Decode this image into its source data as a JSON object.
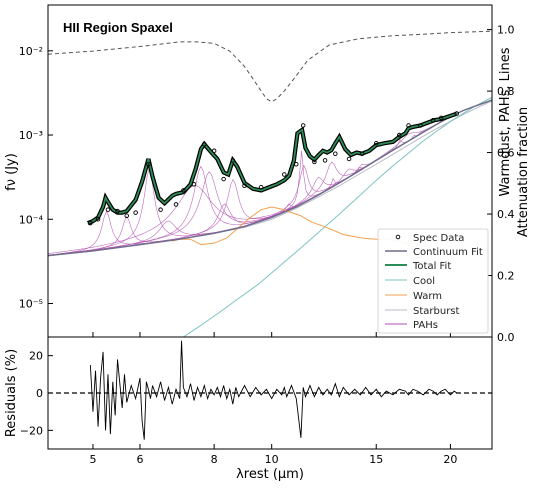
{
  "chart_data": [
    {
      "type": "line",
      "title": "HII Region Spaxel",
      "xlabel": "λrest (μm)",
      "ylabel": "fν (Jy)",
      "y2label": "Attenuation fraction",
      "y2label_small": "Warmdust, PAHs, Lines",
      "xscale": "log",
      "yscale": "log",
      "xlim": [
        4.2,
        23.5
      ],
      "ylim": [
        4e-06,
        0.035
      ],
      "y2lim": [
        0.0,
        1.08
      ],
      "grid": false,
      "legend_position": "lower-right",
      "x_ticks": [
        {
          "value": 5,
          "label": "5"
        },
        {
          "value": 6,
          "label": "6"
        },
        {
          "value": 8,
          "label": "8"
        },
        {
          "value": 10,
          "label": "10"
        },
        {
          "value": 15,
          "label": "15"
        },
        {
          "value": 20,
          "label": "20"
        }
      ],
      "y_ticks": [
        {
          "value": 1e-05,
          "label": "10⁻⁵"
        },
        {
          "value": 0.0001,
          "label": "10⁻⁴"
        },
        {
          "value": 0.001,
          "label": "10⁻³"
        },
        {
          "value": 0.01,
          "label": "10⁻²"
        }
      ],
      "y2_ticks": [
        {
          "value": 0.0,
          "label": "0.0"
        },
        {
          "value": 0.2,
          "label": "0.2"
        },
        {
          "value": 0.4,
          "label": "0.4"
        },
        {
          "value": 0.6,
          "label": "0.6"
        },
        {
          "value": 0.8,
          "label": "0.8"
        },
        {
          "value": 1.0,
          "label": "1.0"
        }
      ],
      "series": [
        {
          "name": "Spec Data",
          "marker": "open-circle",
          "color": "#000000",
          "x": [
            4.95,
            5.1,
            5.3,
            5.5,
            5.7,
            5.9,
            6.2,
            6.5,
            6.9,
            7.1,
            7.4,
            7.7,
            8.0,
            8.3,
            8.6,
            9.0,
            9.6,
            10.5,
            11.0,
            11.3,
            11.8,
            12.3,
            12.8,
            13.5,
            14.2,
            15.0,
            16.4,
            17.0,
            17.8,
            18.7,
            19.3,
            20.5
          ],
          "y": [
            9e-05,
            0.0001,
            0.00013,
            0.000125,
            0.00011,
            0.00012,
            0.00045,
            0.00013,
            0.00015,
            0.00022,
            0.00026,
            0.00078,
            0.00065,
            0.0003,
            0.0005,
            0.00025,
            0.00024,
            0.00034,
            0.00045,
            0.0013,
            0.00048,
            0.0005,
            0.0006,
            0.00052,
            0.0006,
            0.0008,
            0.001,
            0.0013,
            0.0013,
            0.0015,
            0.0016,
            0.0018
          ]
        },
        {
          "name": "Continuum Fit",
          "color": "#6e6e8a",
          "x": [
            4.2,
            5,
            6,
            7,
            8,
            9,
            10,
            11,
            12,
            13,
            14,
            15,
            16,
            17,
            18,
            19,
            20,
            21,
            22,
            23.5
          ],
          "y": [
            3.7e-05,
            4.2e-05,
            5e-05,
            5.8e-05,
            6.8e-05,
            8.2e-05,
            0.000105,
            0.00014,
            0.000195,
            0.00027,
            0.00037,
            0.0005,
            0.00066,
            0.00085,
            0.00108,
            0.00135,
            0.00165,
            0.00195,
            0.0022,
            0.0026
          ]
        },
        {
          "name": "Total Fit",
          "color": "#2e8b57",
          "x": [
            4.9,
            5.0,
            5.1,
            5.2,
            5.25,
            5.3,
            5.4,
            5.5,
            5.6,
            5.7,
            5.9,
            6.05,
            6.2,
            6.3,
            6.45,
            6.6,
            6.8,
            6.9,
            7.1,
            7.3,
            7.45,
            7.6,
            7.7,
            7.8,
            7.95,
            8.1,
            8.3,
            8.45,
            8.6,
            8.75,
            9.0,
            9.3,
            9.6,
            9.9,
            10.2,
            10.5,
            10.7,
            10.9,
            11.05,
            11.25,
            11.4,
            11.6,
            11.8,
            12.0,
            12.2,
            12.4,
            12.6,
            12.8,
            13.0,
            13.3,
            13.6,
            13.9,
            14.2,
            14.6,
            15.0,
            15.5,
            16.0,
            16.4,
            16.8,
            17.0,
            17.3,
            17.8,
            18.3,
            18.8,
            19.3,
            19.8,
            20.3,
            20.5
          ],
          "y": [
            9e-05,
            9.5e-05,
            0.000105,
            0.00014,
            0.00018,
            0.00016,
            0.00013,
            0.00012,
            0.00012,
            0.000125,
            0.00017,
            0.00028,
            0.00052,
            0.00032,
            0.00018,
            0.000155,
            0.00019,
            0.0002,
            0.00021,
            0.00026,
            0.0004,
            0.00068,
            0.00078,
            0.0007,
            0.0006,
            0.00052,
            0.00036,
            0.00034,
            0.0005,
            0.00042,
            0.00027,
            0.00023,
            0.00022,
            0.00024,
            0.00026,
            0.00029,
            0.00033,
            0.0005,
            0.00105,
            0.00115,
            0.0007,
            0.00056,
            0.00051,
            0.00058,
            0.00065,
            0.00062,
            0.00066,
            0.0008,
            0.00095,
            0.00068,
            0.00058,
            0.00062,
            0.0006,
            0.00065,
            0.00076,
            0.0008,
            0.00083,
            0.00095,
            0.00105,
            0.0012,
            0.00125,
            0.0013,
            0.0014,
            0.0015,
            0.00155,
            0.00165,
            0.00175,
            0.0018
          ]
        },
        {
          "name": "Cool",
          "color": "#7ec2c2",
          "x": [
            7.1,
            7.6,
            8.2,
            8.8,
            9.5,
            10.2,
            11.0,
            12.0,
            13.0,
            14.0,
            15.0,
            16.0,
            17.0,
            18.0,
            19.0,
            20.0,
            21.0,
            22.0,
            23.5
          ],
          "y": [
            4e-06,
            5.5e-06,
            8e-06,
            1.15e-05,
            1.7e-05,
            2.6e-05,
            4.1e-05,
            7e-05,
            0.000115,
            0.000185,
            0.00029,
            0.00043,
            0.00061,
            0.00085,
            0.00112,
            0.00145,
            0.0018,
            0.0022,
            0.0028
          ]
        },
        {
          "name": "Warm",
          "color": "#f0a050",
          "x": [
            6.8,
            7.0,
            7.3,
            7.6,
            8.0,
            8.4,
            8.8,
            9.2,
            9.6,
            10.0,
            10.4,
            10.8,
            11.2,
            11.7,
            12.2,
            12.7,
            13.2,
            13.8,
            14.4,
            15.0,
            15.6,
            16.2,
            16.8,
            17.5,
            18.2
          ],
          "y": [
            5.5e-05,
            5.8e-05,
            5.8e-05,
            5e-05,
            5.2e-05,
            6e-05,
            8e-05,
            0.000105,
            0.00013,
            0.00014,
            0.000132,
            0.00012,
            0.00011,
            9.2e-05,
            8.3e-05,
            7.4e-05,
            6.6e-05,
            6.2e-05,
            5.9e-05,
            5.8e-05,
            5.8e-05,
            5.6e-05,
            5.2e-05,
            5e-05,
            4.7e-05
          ]
        },
        {
          "name": "Starburst",
          "color": "#b8b8c8",
          "x": [
            4.2,
            5,
            6,
            7,
            8,
            9,
            10,
            11,
            12,
            13,
            14,
            15,
            16,
            17,
            18,
            19,
            20,
            21,
            22,
            23.5
          ],
          "y": [
            3.7e-05,
            4.2e-05,
            5e-05,
            5.8e-05,
            6.8e-05,
            8e-05,
            0.0001,
            0.000135,
            0.000185,
            0.00025,
            0.00034,
            0.00045,
            0.00059,
            0.00076,
            0.00097,
            0.0012,
            0.00145,
            0.00175,
            0.00205,
            0.00255
          ]
        },
        {
          "name": "PAHs",
          "color": "#b04fb0",
          "profile": "drude",
          "features": [
            {
              "x0": 5.27,
              "peak": 8e-05,
              "fwhm": 0.18
            },
            {
              "x0": 5.7,
              "peak": 6e-05,
              "fwhm": 0.2
            },
            {
              "x0": 6.22,
              "peak": 0.00035,
              "fwhm": 0.19
            },
            {
              "x0": 6.69,
              "peak": 4e-05,
              "fwhm": 0.47
            },
            {
              "x0": 7.42,
              "peak": 0.00019,
              "fwhm": 0.94
            },
            {
              "x0": 7.6,
              "peak": 0.00036,
              "fwhm": 0.33
            },
            {
              "x0": 7.85,
              "peak": 0.0003,
              "fwhm": 0.42
            },
            {
              "x0": 8.33,
              "peak": 8e-05,
              "fwhm": 0.42
            },
            {
              "x0": 8.61,
              "peak": 0.00022,
              "fwhm": 0.34
            },
            {
              "x0": 10.68,
              "peak": 2.5e-05,
              "fwhm": 0.21
            },
            {
              "x0": 11.23,
              "peak": 0.0005,
              "fwhm": 0.14
            },
            {
              "x0": 11.33,
              "peak": 0.00028,
              "fwhm": 0.36
            },
            {
              "x0": 11.99,
              "peak": 0.00012,
              "fwhm": 0.54
            },
            {
              "x0": 12.62,
              "peak": 0.00024,
              "fwhm": 0.53
            },
            {
              "x0": 12.69,
              "peak": 6e-05,
              "fwhm": 0.16
            },
            {
              "x0": 13.48,
              "peak": 8e-05,
              "fwhm": 0.54
            },
            {
              "x0": 14.04,
              "peak": 4e-05,
              "fwhm": 0.22
            },
            {
              "x0": 14.19,
              "peak": 6e-05,
              "fwhm": 0.36
            },
            {
              "x0": 15.9,
              "peak": 3e-05,
              "fwhm": 0.32
            },
            {
              "x0": 16.45,
              "peak": 0.00014,
              "fwhm": 0.23
            },
            {
              "x0": 17.04,
              "peak": 0.00018,
              "fwhm": 1.1
            },
            {
              "x0": 17.37,
              "peak": 6e-05,
              "fwhm": 0.21
            },
            {
              "x0": 17.87,
              "peak": 5e-05,
              "fwhm": 0.29
            }
          ]
        },
        {
          "name": "Attenuation",
          "axis": "y2",
          "style": "dashed",
          "color": "#555555",
          "x": [
            4.2,
            5,
            6,
            7,
            7.5,
            8,
            8.5,
            9,
            9.3,
            9.6,
            9.8,
            10.0,
            10.2,
            10.5,
            10.9,
            11.5,
            12.5,
            14,
            16,
            18,
            20,
            23.5
          ],
          "y": [
            0.92,
            0.93,
            0.945,
            0.96,
            0.96,
            0.955,
            0.93,
            0.88,
            0.84,
            0.8,
            0.775,
            0.765,
            0.775,
            0.8,
            0.84,
            0.9,
            0.95,
            0.97,
            0.98,
            0.985,
            0.99,
            0.995
          ]
        }
      ]
    },
    {
      "type": "line",
      "xlabel": "λrest (μm)",
      "ylabel": "Residuals (%)",
      "xscale": "log",
      "xlim": [
        4.2,
        23.5
      ],
      "ylim": [
        -30,
        30
      ],
      "y_ticks": [
        {
          "value": -20,
          "label": "−20"
        },
        {
          "value": 0,
          "label": "0"
        },
        {
          "value": 20,
          "label": "20"
        }
      ],
      "zero_line": "dashed",
      "series": [
        {
          "name": "Residuals",
          "color": "#000000",
          "x": [
            4.95,
            5.0,
            5.05,
            5.1,
            5.15,
            5.2,
            5.25,
            5.3,
            5.35,
            5.4,
            5.45,
            5.5,
            5.6,
            5.65,
            5.7,
            5.8,
            5.9,
            6.0,
            6.05,
            6.1,
            6.15,
            6.2,
            6.25,
            6.3,
            6.4,
            6.5,
            6.6,
            6.7,
            6.8,
            6.9,
            7.0,
            7.05,
            7.1,
            7.2,
            7.3,
            7.4,
            7.5,
            7.6,
            7.7,
            7.8,
            7.9,
            8.0,
            8.1,
            8.2,
            8.3,
            8.4,
            8.5,
            8.6,
            8.7,
            8.8,
            9.0,
            9.2,
            9.4,
            9.6,
            9.8,
            10.0,
            10.2,
            10.4,
            10.5,
            10.6,
            10.8,
            11.0,
            11.2,
            11.3,
            11.4,
            11.6,
            11.8,
            12.0,
            12.2,
            12.4,
            12.6,
            12.8,
            13.0,
            13.2,
            13.5,
            13.8,
            14.1,
            14.4,
            14.7,
            15.0,
            15.3,
            15.6,
            16.0,
            16.4,
            16.8,
            17.0,
            17.3,
            17.6,
            18.0,
            18.4,
            18.7,
            19.0,
            19.3,
            19.6,
            20.0,
            20.3,
            20.5
          ],
          "y": [
            15,
            -10,
            12,
            -18,
            8,
            22,
            -20,
            10,
            -22,
            6,
            -12,
            18,
            -8,
            10,
            -5,
            4,
            -3,
            8,
            -15,
            -25,
            6,
            2,
            -3,
            4,
            -2,
            6,
            -4,
            3,
            -6,
            2,
            -3,
            28,
            3,
            -2,
            5,
            -4,
            3,
            -2,
            4,
            -3,
            2,
            -1,
            3,
            -2,
            4,
            -3,
            2,
            -6,
            3,
            -2,
            4,
            -2,
            3,
            -1,
            2,
            -3,
            2,
            -1,
            3,
            -2,
            4,
            -3,
            -24,
            3,
            -2,
            4,
            -2,
            3,
            -1,
            2,
            -1,
            5,
            -2,
            3,
            -1,
            2,
            -1,
            3,
            -1,
            2,
            -2,
            1,
            -1,
            2,
            1,
            -1,
            2,
            1,
            -1,
            2,
            1,
            -1,
            1,
            2,
            -1,
            1,
            0
          ]
        }
      ]
    }
  ]
}
